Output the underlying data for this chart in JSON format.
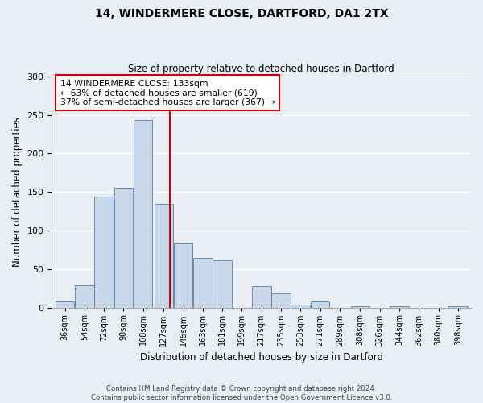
{
  "title": "14, WINDERMERE CLOSE, DARTFORD, DA1 2TX",
  "subtitle": "Size of property relative to detached houses in Dartford",
  "xlabel": "Distribution of detached houses by size in Dartford",
  "ylabel": "Number of detached properties",
  "bin_labels": [
    "36sqm",
    "54sqm",
    "72sqm",
    "90sqm",
    "108sqm",
    "127sqm",
    "145sqm",
    "163sqm",
    "181sqm",
    "199sqm",
    "217sqm",
    "235sqm",
    "253sqm",
    "271sqm",
    "289sqm",
    "308sqm",
    "326sqm",
    "344sqm",
    "362sqm",
    "380sqm",
    "398sqm"
  ],
  "bin_centers": [
    36,
    54,
    72,
    90,
    108,
    127,
    145,
    163,
    181,
    199,
    217,
    235,
    253,
    271,
    289,
    308,
    326,
    344,
    362,
    380,
    398
  ],
  "bar_heights": [
    9,
    30,
    144,
    156,
    243,
    135,
    84,
    65,
    62,
    0,
    28,
    19,
    5,
    9,
    0,
    2,
    0,
    2,
    0,
    0,
    2
  ],
  "bar_color": "#c8d8e8",
  "bar_edge_color": "#5580b0",
  "vline_x": 133,
  "vline_color": "#cc0000",
  "ylim": [
    0,
    300
  ],
  "yticks": [
    0,
    50,
    100,
    150,
    200,
    250,
    300
  ],
  "annotation_title": "14 WINDERMERE CLOSE: 133sqm",
  "annotation_line1": "← 63% of detached houses are smaller (619)",
  "annotation_line2": "37% of semi-detached houses are larger (367) →",
  "annotation_box_facecolor": "#ffffff",
  "annotation_border_color": "#cc0000",
  "footer_line1": "Contains HM Land Registry data © Crown copyright and database right 2024.",
  "footer_line2": "Contains public sector information licensed under the Open Government Licence v3.0.",
  "bg_color": "#e8eef4",
  "plot_bg_color": "#e8eef4",
  "grid_color": "#ffffff"
}
